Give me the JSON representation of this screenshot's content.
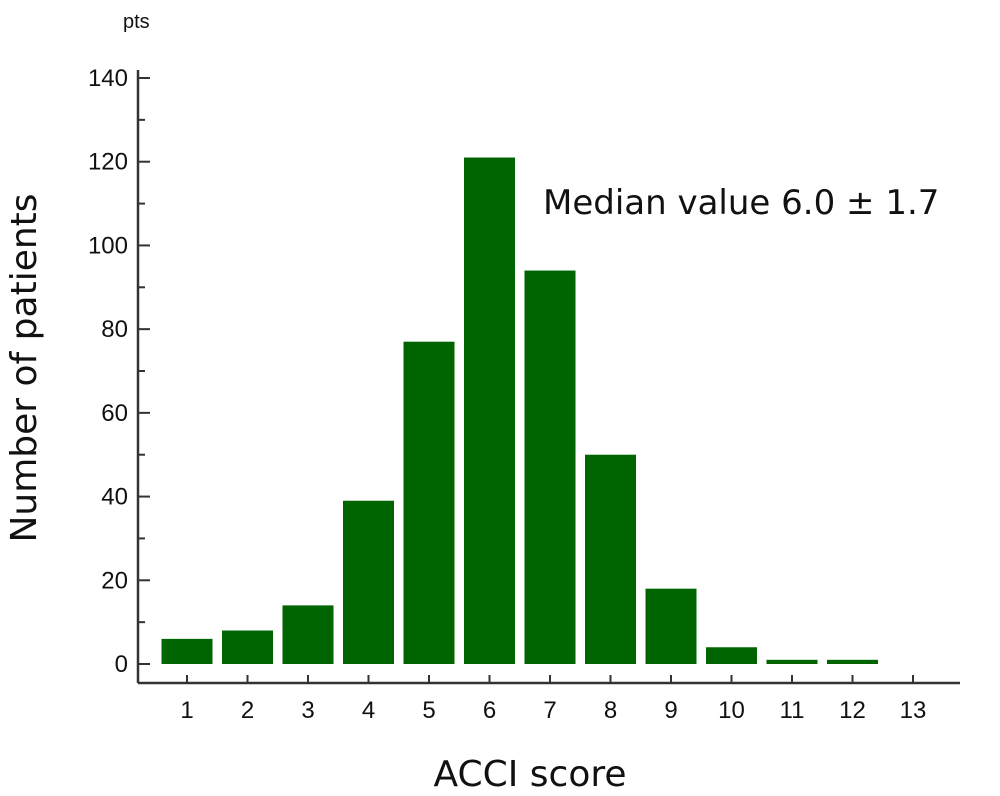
{
  "chart_data": {
    "type": "bar",
    "title": "",
    "xlabel": "ACCI score",
    "ylabel": "Number of patients",
    "y_unit": "pts",
    "annotation": "Median value 6.0 ± 1.7",
    "categories": [
      "1",
      "2",
      "3",
      "4",
      "5",
      "6",
      "7",
      "8",
      "9",
      "10",
      "11",
      "12",
      "13"
    ],
    "values": [
      6,
      8,
      14,
      39,
      77,
      121,
      94,
      50,
      18,
      4,
      1,
      1,
      0
    ],
    "ylim": [
      0,
      140
    ],
    "yticks": [
      "0",
      "20",
      "40",
      "60",
      "80",
      "100",
      "120",
      "140"
    ],
    "grid": false,
    "legend": "none",
    "bar_color": "#006400"
  }
}
